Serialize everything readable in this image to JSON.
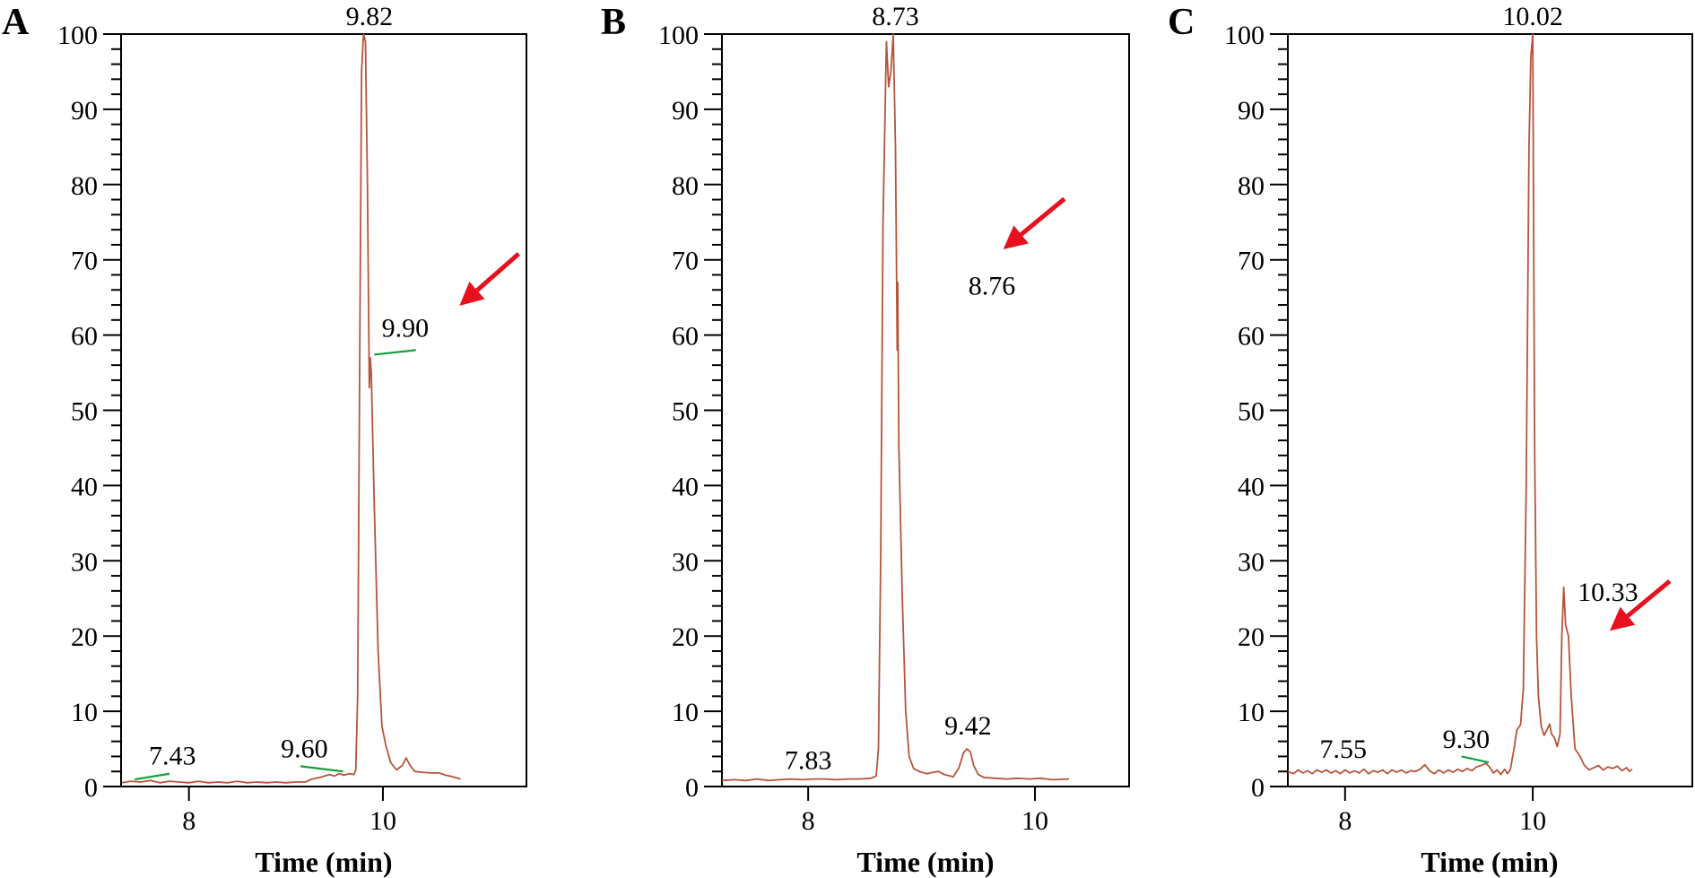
{
  "chart_data": [
    {
      "type": "line",
      "panel": "A",
      "xlabel": "Time (min)",
      "ylabel": "",
      "xlim": [
        7.3,
        11.48
      ],
      "ylim": [
        0,
        100
      ],
      "xticks": [
        8,
        10
      ],
      "yticks": [
        0,
        10,
        20,
        30,
        40,
        50,
        60,
        70,
        80,
        90,
        100
      ],
      "grid": false,
      "colors": {
        "trace": "#b4553b",
        "marker": "#12a040",
        "arrow": "#e8101e"
      },
      "series": [
        {
          "name": "A",
          "points": [
            [
              7.31,
              0.5
            ],
            [
              7.4,
              0.7
            ],
            [
              7.5,
              0.6
            ],
            [
              7.6,
              0.8
            ],
            [
              7.7,
              0.5
            ],
            [
              7.8,
              0.7
            ],
            [
              7.9,
              0.6
            ],
            [
              8.0,
              0.5
            ],
            [
              8.1,
              0.7
            ],
            [
              8.2,
              0.5
            ],
            [
              8.3,
              0.6
            ],
            [
              8.4,
              0.5
            ],
            [
              8.5,
              0.7
            ],
            [
              8.6,
              0.5
            ],
            [
              8.7,
              0.6
            ],
            [
              8.8,
              0.5
            ],
            [
              8.9,
              0.6
            ],
            [
              9.0,
              0.5
            ],
            [
              9.1,
              0.6
            ],
            [
              9.2,
              0.6
            ],
            [
              9.27,
              1.0
            ],
            [
              9.35,
              1.2
            ],
            [
              9.45,
              1.6
            ],
            [
              9.5,
              1.4
            ],
            [
              9.55,
              1.7
            ],
            [
              9.6,
              1.5
            ],
            [
              9.65,
              1.7
            ],
            [
              9.7,
              1.6
            ],
            [
              9.72,
              2.2
            ],
            [
              9.74,
              12
            ],
            [
              9.76,
              55
            ],
            [
              9.78,
              95
            ],
            [
              9.8,
              100
            ],
            [
              9.82,
              99
            ],
            [
              9.84,
              80
            ],
            [
              9.86,
              53
            ],
            [
              9.87,
              57
            ],
            [
              9.88,
              55
            ],
            [
              9.91,
              38
            ],
            [
              9.95,
              18
            ],
            [
              9.99,
              8
            ],
            [
              10.03,
              5.5
            ],
            [
              10.08,
              3.2
            ],
            [
              10.14,
              2.2
            ],
            [
              10.2,
              2.8
            ],
            [
              10.24,
              3.8
            ],
            [
              10.28,
              2.8
            ],
            [
              10.33,
              2.0
            ],
            [
              10.4,
              1.9
            ],
            [
              10.5,
              1.8
            ],
            [
              10.58,
              1.8
            ],
            [
              10.65,
              1.5
            ],
            [
              10.72,
              1.3
            ],
            [
              10.8,
              1.0
            ]
          ]
        }
      ],
      "annotations": [
        {
          "text": "9.82",
          "x": 9.86,
          "y": 101.2
        },
        {
          "text": "9.90",
          "x": 10.23,
          "y": 59.8,
          "marker": [
            [
              9.91,
              57.4
            ],
            [
              10.34,
              58.0
            ]
          ]
        },
        {
          "text": "7.43",
          "x": 7.83,
          "y": 2.9,
          "marker": [
            [
              7.44,
              0.95
            ],
            [
              7.8,
              1.7
            ]
          ]
        },
        {
          "text": "9.60",
          "x": 9.19,
          "y": 3.9,
          "marker": [
            [
              9.15,
              2.7
            ],
            [
              9.59,
              2.0
            ]
          ]
        }
      ],
      "arrows": [
        {
          "from": [
            11.4,
            70.8
          ],
          "to": [
            10.79,
            63.9
          ]
        }
      ]
    },
    {
      "type": "line",
      "panel": "B",
      "xlabel": "Time (min)",
      "ylabel": "",
      "xlim": [
        7.24,
        10.83
      ],
      "ylim": [
        0,
        100
      ],
      "xticks": [
        8,
        10
      ],
      "yticks": [
        0,
        10,
        20,
        30,
        40,
        50,
        60,
        70,
        80,
        90,
        100
      ],
      "grid": false,
      "colors": {
        "trace": "#b4553b",
        "marker": "#12a040",
        "arrow": "#e8101e"
      },
      "series": [
        {
          "name": "B",
          "points": [
            [
              7.24,
              0.8
            ],
            [
              7.35,
              0.9
            ],
            [
              7.45,
              0.8
            ],
            [
              7.55,
              1.0
            ],
            [
              7.65,
              0.8
            ],
            [
              7.75,
              0.9
            ],
            [
              7.85,
              1.0
            ],
            [
              7.95,
              0.9
            ],
            [
              8.05,
              1.0
            ],
            [
              8.15,
              1.0
            ],
            [
              8.25,
              0.9
            ],
            [
              8.35,
              1.0
            ],
            [
              8.45,
              1.0
            ],
            [
              8.55,
              1.1
            ],
            [
              8.6,
              1.4
            ],
            [
              8.62,
              5
            ],
            [
              8.64,
              30
            ],
            [
              8.66,
              75
            ],
            [
              8.69,
              99
            ],
            [
              8.71,
              93
            ],
            [
              8.73,
              95
            ],
            [
              8.75,
              100
            ],
            [
              8.77,
              85
            ],
            [
              8.78,
              67
            ],
            [
              8.785,
              58
            ],
            [
              8.79,
              67
            ],
            [
              8.8,
              45
            ],
            [
              8.83,
              25
            ],
            [
              8.86,
              10
            ],
            [
              8.89,
              4
            ],
            [
              8.93,
              2.4
            ],
            [
              8.98,
              2.0
            ],
            [
              9.05,
              1.7
            ],
            [
              9.1,
              1.9
            ],
            [
              9.15,
              2.0
            ],
            [
              9.2,
              1.6
            ],
            [
              9.28,
              1.3
            ],
            [
              9.33,
              2.5
            ],
            [
              9.37,
              4.5
            ],
            [
              9.4,
              5.0
            ],
            [
              9.43,
              4.6
            ],
            [
              9.46,
              2.8
            ],
            [
              9.5,
              1.6
            ],
            [
              9.55,
              1.2
            ],
            [
              9.65,
              1.1
            ],
            [
              9.75,
              1.0
            ],
            [
              9.85,
              1.1
            ],
            [
              9.95,
              1.0
            ],
            [
              10.05,
              1.1
            ],
            [
              10.15,
              0.9
            ],
            [
              10.3,
              1.0
            ]
          ]
        }
      ],
      "annotations": [
        {
          "text": "8.73",
          "x": 8.77,
          "y": 101.2
        },
        {
          "text": "8.76",
          "x": 9.62,
          "y": 65.4
        },
        {
          "text": "7.83",
          "x": 8.0,
          "y": 2.3
        },
        {
          "text": "9.42",
          "x": 9.41,
          "y": 6.9
        }
      ],
      "arrows": [
        {
          "from": [
            10.26,
            78.1
          ],
          "to": [
            9.72,
            71.4
          ]
        }
      ]
    },
    {
      "type": "line",
      "panel": "C",
      "xlabel": "Time (min)",
      "ylabel": "",
      "xlim": [
        7.39,
        11.7
      ],
      "ylim": [
        0,
        100
      ],
      "xticks": [
        8,
        10
      ],
      "yticks": [
        0,
        10,
        20,
        30,
        40,
        50,
        60,
        70,
        80,
        90,
        100
      ],
      "grid": false,
      "colors": {
        "trace": "#b4553b",
        "marker": "#12a040",
        "arrow": "#e8101e"
      },
      "series": [
        {
          "name": "C",
          "points": [
            [
              7.39,
              2.0
            ],
            [
              7.45,
              1.7
            ],
            [
              7.5,
              2.2
            ],
            [
              7.55,
              1.8
            ],
            [
              7.6,
              2.1
            ],
            [
              7.65,
              1.7
            ],
            [
              7.7,
              2.2
            ],
            [
              7.75,
              1.9
            ],
            [
              7.8,
              2.2
            ],
            [
              7.85,
              1.8
            ],
            [
              7.9,
              2.1
            ],
            [
              7.95,
              1.7
            ],
            [
              8.0,
              2.2
            ],
            [
              8.05,
              1.8
            ],
            [
              8.1,
              2.1
            ],
            [
              8.15,
              1.8
            ],
            [
              8.2,
              2.3
            ],
            [
              8.25,
              1.7
            ],
            [
              8.3,
              2.1
            ],
            [
              8.35,
              1.9
            ],
            [
              8.4,
              2.2
            ],
            [
              8.45,
              1.7
            ],
            [
              8.5,
              2.2
            ],
            [
              8.55,
              1.9
            ],
            [
              8.6,
              2.2
            ],
            [
              8.65,
              1.8
            ],
            [
              8.7,
              2.1
            ],
            [
              8.75,
              2.0
            ],
            [
              8.8,
              2.3
            ],
            [
              8.85,
              2.9
            ],
            [
              8.9,
              2.1
            ],
            [
              8.95,
              1.7
            ],
            [
              9.0,
              2.2
            ],
            [
              9.05,
              1.8
            ],
            [
              9.1,
              2.2
            ],
            [
              9.15,
              1.9
            ],
            [
              9.2,
              2.3
            ],
            [
              9.25,
              2.0
            ],
            [
              9.3,
              2.4
            ],
            [
              9.35,
              2.1
            ],
            [
              9.4,
              2.6
            ],
            [
              9.45,
              2.8
            ],
            [
              9.5,
              3.1
            ],
            [
              9.54,
              2.6
            ],
            [
              9.58,
              1.8
            ],
            [
              9.62,
              2.2
            ],
            [
              9.66,
              1.6
            ],
            [
              9.7,
              2.3
            ],
            [
              9.73,
              1.7
            ],
            [
              9.76,
              2.2
            ],
            [
              9.8,
              5
            ],
            [
              9.83,
              7.5
            ],
            [
              9.87,
              8.2
            ],
            [
              9.9,
              13
            ],
            [
              9.93,
              40
            ],
            [
              9.96,
              85
            ],
            [
              9.98,
              97
            ],
            [
              10.0,
              100
            ],
            [
              10.02,
              45
            ],
            [
              10.04,
              20
            ],
            [
              10.06,
              12
            ],
            [
              10.09,
              8
            ],
            [
              10.12,
              6.8
            ],
            [
              10.15,
              7.5
            ],
            [
              10.18,
              8.3
            ],
            [
              10.2,
              7.0
            ],
            [
              10.23,
              6.5
            ],
            [
              10.26,
              5.3
            ],
            [
              10.29,
              7
            ],
            [
              10.31,
              20
            ],
            [
              10.33,
              26.5
            ],
            [
              10.35,
              21.5
            ],
            [
              10.38,
              20
            ],
            [
              10.41,
              12
            ],
            [
              10.45,
              5
            ],
            [
              10.5,
              4.1
            ],
            [
              10.55,
              2.8
            ],
            [
              10.6,
              2.2
            ],
            [
              10.65,
              2.5
            ],
            [
              10.7,
              2.8
            ],
            [
              10.75,
              2.2
            ],
            [
              10.8,
              2.6
            ],
            [
              10.85,
              2.4
            ],
            [
              10.9,
              2.7
            ],
            [
              10.95,
              2.1
            ],
            [
              11.0,
              2.5
            ],
            [
              11.03,
              2.0
            ],
            [
              11.06,
              2.3
            ]
          ]
        }
      ],
      "annotations": [
        {
          "text": "10.02",
          "x": 10.0,
          "y": 101.2
        },
        {
          "text": "10.33",
          "x": 10.8,
          "y": 24.7
        },
        {
          "text": "7.55",
          "x": 7.98,
          "y": 3.8
        },
        {
          "text": "9.30",
          "x": 9.29,
          "y": 5.1,
          "marker": [
            [
              9.24,
              4.0
            ],
            [
              9.53,
              3.2
            ]
          ]
        }
      ],
      "arrows": [
        {
          "from": [
            11.46,
            27.3
          ],
          "to": [
            10.82,
            20.7
          ]
        }
      ]
    }
  ]
}
